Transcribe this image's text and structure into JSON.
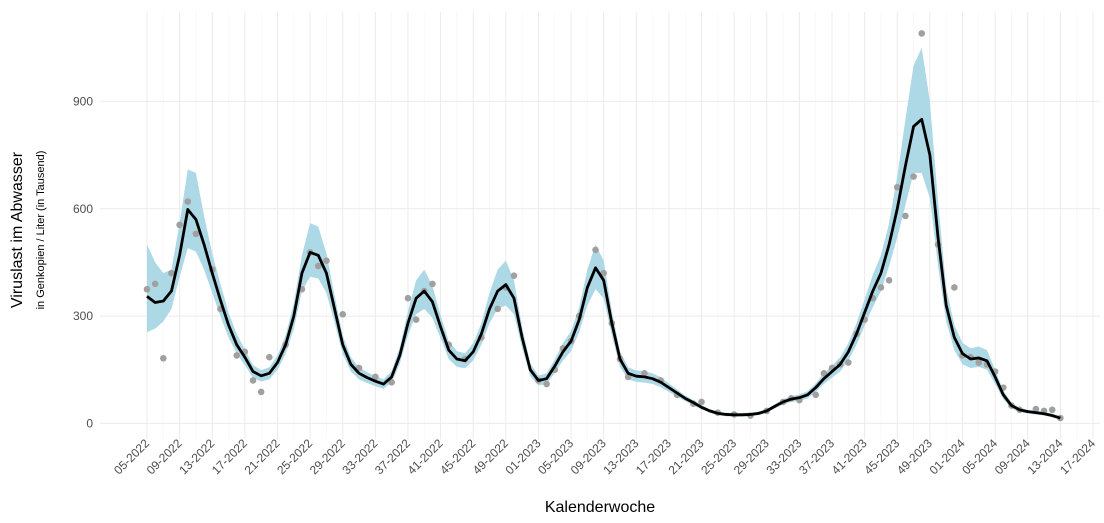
{
  "chart_data": {
    "type": "line",
    "y_label": "Viruslast im Abwasser",
    "y_sublabel": "in Genkopien / Liter (in Tausend)",
    "x_label": "Kalenderwoche",
    "ylim": [
      -45,
      1150
    ],
    "yticks": [
      0,
      300,
      600,
      900
    ],
    "grid": true,
    "categories": [
      "05-2022",
      null,
      null,
      null,
      "09-2022",
      null,
      null,
      null,
      "13-2022",
      null,
      null,
      null,
      "17-2022",
      null,
      null,
      null,
      "21-2022",
      null,
      null,
      null,
      "25-2022",
      null,
      null,
      null,
      "29-2022",
      null,
      null,
      null,
      "33-2022",
      null,
      null,
      null,
      "37-2022",
      null,
      null,
      null,
      "41-2022",
      null,
      null,
      null,
      "45-2022",
      null,
      null,
      null,
      "49-2022",
      null,
      null,
      null,
      "01-2023",
      null,
      null,
      null,
      "05-2023",
      null,
      null,
      null,
      "09-2023",
      null,
      null,
      null,
      "13-2023",
      null,
      null,
      null,
      "17-2023",
      null,
      null,
      null,
      "21-2023",
      null,
      null,
      null,
      "25-2023",
      null,
      null,
      null,
      "29-2023",
      null,
      null,
      null,
      "33-2023",
      null,
      null,
      null,
      "37-2023",
      null,
      null,
      null,
      "41-2023",
      null,
      null,
      null,
      "45-2023",
      null,
      null,
      null,
      "49-2023",
      null,
      null,
      null,
      "01-2024",
      null,
      null,
      null,
      "05-2024",
      null,
      null,
      null,
      "09-2024",
      null,
      null,
      null,
      "13-2024",
      null,
      null,
      null,
      "17-2024"
    ],
    "band": {
      "color": "#add8e6",
      "lower": [
        255,
        265,
        285,
        320,
        410,
        490,
        480,
        430,
        365,
        300,
        240,
        195,
        163,
        127,
        117,
        123,
        150,
        194,
        264,
        370,
        410,
        405,
        365,
        282,
        194,
        145,
        123,
        113,
        104,
        97,
        114,
        167,
        246,
        305,
        320,
        295,
        238,
        180,
        158,
        154,
        176,
        220,
        280,
        320,
        330,
        305,
        211,
        132,
        106,
        110,
        141,
        176,
        202,
        255,
        330,
        375,
        350,
        246,
        158,
        123,
        116,
        114,
        110,
        101,
        88,
        75,
        62,
        51,
        39,
        30,
        23,
        20,
        19,
        19,
        20,
        23,
        30,
        42,
        53,
        60,
        63,
        70,
        88,
        110,
        128,
        145,
        176,
        220,
        273,
        325,
        370,
        440,
        520,
        610,
        700,
        700,
        630,
        440,
        285,
        205,
        165,
        155,
        158,
        150,
        110,
        68,
        42,
        32,
        28,
        25,
        22,
        17,
        10,
        null,
        null,
        null,
        null
      ],
      "upper": [
        500,
        450,
        420,
        430,
        560,
        710,
        700,
        580,
        475,
        390,
        310,
        250,
        207,
        163,
        149,
        157,
        190,
        246,
        336,
        470,
        560,
        550,
        475,
        358,
        246,
        185,
        157,
        143,
        132,
        123,
        146,
        213,
        314,
        400,
        430,
        385,
        302,
        230,
        202,
        196,
        224,
        280,
        365,
        430,
        455,
        400,
        269,
        168,
        134,
        140,
        179,
        224,
        258,
        325,
        430,
        500,
        455,
        314,
        202,
        157,
        148,
        146,
        140,
        129,
        112,
        95,
        78,
        65,
        51,
        40,
        33,
        30,
        29,
        29,
        30,
        33,
        40,
        54,
        67,
        76,
        81,
        90,
        112,
        140,
        162,
        185,
        224,
        280,
        347,
        415,
        470,
        560,
        690,
        850,
        1000,
        1050,
        900,
        620,
        380,
        275,
        225,
        210,
        215,
        205,
        150,
        92,
        58,
        44,
        38,
        35,
        32,
        27,
        20,
        null,
        null,
        null,
        null
      ]
    },
    "series": [
      {
        "color": "#000000",
        "values": [
          355,
          338,
          342,
          370,
          470,
          598,
          570,
          500,
          420,
          345,
          275,
          220,
          185,
          145,
          133,
          140,
          170,
          220,
          300,
          420,
          478,
          470,
          420,
          320,
          220,
          165,
          140,
          128,
          118,
          110,
          130,
          190,
          280,
          350,
          370,
          340,
          270,
          205,
          180,
          175,
          200,
          250,
          320,
          370,
          388,
          350,
          240,
          150,
          120,
          125,
          160,
          200,
          230,
          290,
          380,
          435,
          400,
          280,
          180,
          140,
          132,
          130,
          125,
          115,
          100,
          85,
          70,
          58,
          45,
          35,
          28,
          25,
          24,
          24,
          25,
          28,
          35,
          48,
          60,
          68,
          72,
          80,
          100,
          125,
          145,
          165,
          200,
          250,
          310,
          370,
          420,
          500,
          600,
          720,
          830,
          850,
          750,
          520,
          330,
          240,
          195,
          180,
          183,
          175,
          130,
          80,
          50,
          38,
          33,
          30,
          27,
          22,
          15,
          null,
          null,
          null,
          null
        ]
      }
    ],
    "points": {
      "color": "#a0a0a0",
      "values": [
        375,
        390,
        182,
        420,
        555,
        620,
        530,
        null,
        430,
        320,
        null,
        190,
        200,
        120,
        88,
        185,
        null,
        220,
        null,
        375,
        478,
        440,
        455,
        null,
        305,
        null,
        155,
        null,
        130,
        null,
        115,
        null,
        350,
        290,
        370,
        390,
        null,
        220,
        null,
        180,
        null,
        240,
        null,
        320,
        380,
        413,
        null,
        null,
        120,
        110,
        150,
        210,
        230,
        300,
        null,
        485,
        420,
        280,
        180,
        130,
        null,
        140,
        null,
        120,
        null,
        80,
        null,
        55,
        60,
        null,
        30,
        null,
        25,
        null,
        22,
        null,
        35,
        null,
        60,
        70,
        65,
        null,
        80,
        140,
        155,
        165,
        170,
        250,
        290,
        350,
        380,
        400,
        660,
        580,
        690,
        1090,
        null,
        500,
        null,
        380,
        190,
        185,
        170,
        165,
        145,
        100,
        50,
        38,
        null,
        40,
        35,
        38,
        15,
        null,
        null,
        null,
        null
      ]
    }
  }
}
